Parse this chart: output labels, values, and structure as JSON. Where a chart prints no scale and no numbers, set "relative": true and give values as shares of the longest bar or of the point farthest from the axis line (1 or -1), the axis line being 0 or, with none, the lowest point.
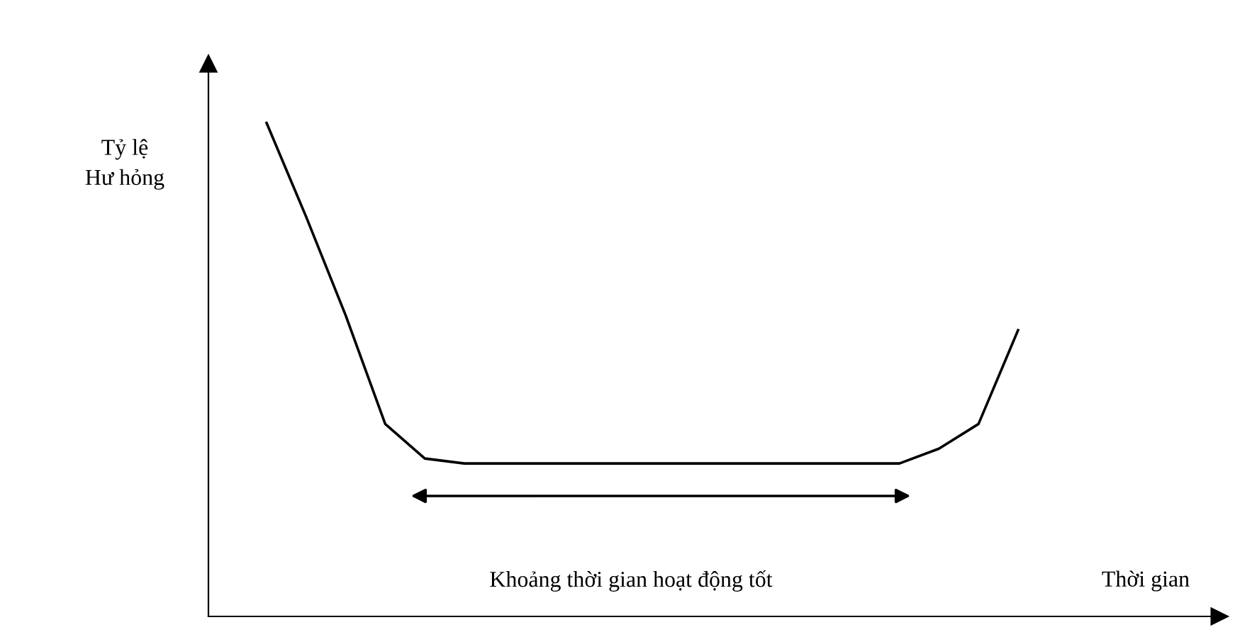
{
  "chart_data": {
    "type": "line",
    "relative": true,
    "xlabel": "Thời gian",
    "ylabel": "Tỷ lệ\nHư hỏng",
    "categories": [
      null,
      null,
      null,
      null,
      null,
      null,
      null,
      null,
      null,
      null,
      null,
      null,
      null,
      null,
      null,
      null,
      null,
      null,
      null,
      null
    ],
    "series": [
      {
        "color": "#000000",
        "values": [
          1.0,
          0.81,
          0.61,
          0.39,
          0.32,
          0.31,
          0.31,
          0.31,
          0.31,
          0.31,
          0.31,
          0.31,
          0.31,
          0.31,
          0.31,
          0.31,
          0.31,
          0.34,
          0.39,
          0.58
        ]
      }
    ],
    "annotations": [
      "Khoảng thời gian hoạt động tốt"
    ],
    "marker": "none",
    "line_style": "solid",
    "legend": false,
    "tick_labels": false
  }
}
